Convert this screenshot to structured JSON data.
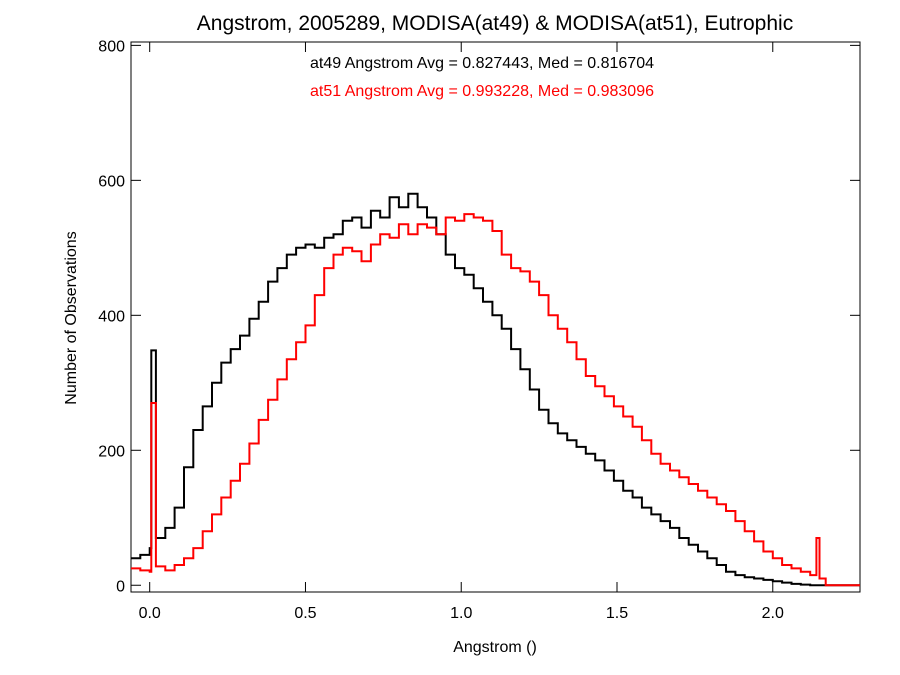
{
  "chart_data": {
    "type": "line",
    "step": true,
    "title": "Angstrom, 2005289, MODISA(at49) & MODISA(at51), Eutrophic",
    "xlabel": "Angstrom ()",
    "ylabel": "Number of Observations",
    "xlim": [
      -0.06,
      2.28
    ],
    "ylim": [
      -10,
      805
    ],
    "xticks": [
      {
        "value": 0.0,
        "label": "0.0"
      },
      {
        "value": 0.5,
        "label": "0.5"
      },
      {
        "value": 1.0,
        "label": "1.0"
      },
      {
        "value": 1.5,
        "label": "1.5"
      },
      {
        "value": 2.0,
        "label": "2.0"
      }
    ],
    "yticks": [
      {
        "value": 0,
        "label": "0"
      },
      {
        "value": 200,
        "label": "200"
      },
      {
        "value": 400,
        "label": "400"
      },
      {
        "value": 600,
        "label": "600"
      },
      {
        "value": 800,
        "label": "800"
      }
    ],
    "grid": false,
    "annotations": [
      {
        "text": "at49 Angstrom Avg = 0.827443, Med = 0.816704",
        "color": "#000000"
      },
      {
        "text": "at51 Angstrom Avg = 0.993228, Med = 0.983096",
        "color": "#ff0000"
      }
    ],
    "series": [
      {
        "color": "#000000",
        "x": [
          -0.06,
          -0.03,
          0.0,
          0.005,
          0.02,
          0.05,
          0.08,
          0.11,
          0.14,
          0.17,
          0.2,
          0.23,
          0.26,
          0.29,
          0.32,
          0.35,
          0.38,
          0.41,
          0.44,
          0.47,
          0.5,
          0.53,
          0.56,
          0.59,
          0.62,
          0.65,
          0.68,
          0.71,
          0.74,
          0.77,
          0.8,
          0.83,
          0.86,
          0.89,
          0.92,
          0.95,
          0.98,
          1.01,
          1.04,
          1.07,
          1.1,
          1.13,
          1.16,
          1.19,
          1.22,
          1.25,
          1.28,
          1.31,
          1.34,
          1.37,
          1.4,
          1.43,
          1.46,
          1.49,
          1.52,
          1.55,
          1.58,
          1.61,
          1.64,
          1.67,
          1.7,
          1.73,
          1.76,
          1.79,
          1.82,
          1.85,
          1.88,
          1.91,
          1.94,
          1.97,
          2.0,
          2.03,
          2.06,
          2.09,
          2.12,
          2.15,
          2.18,
          2.21,
          2.24,
          2.28
        ],
        "y": [
          40,
          45,
          55,
          348,
          70,
          85,
          115,
          175,
          230,
          265,
          300,
          330,
          350,
          370,
          395,
          420,
          450,
          470,
          490,
          500,
          505,
          500,
          515,
          520,
          540,
          545,
          530,
          555,
          545,
          575,
          560,
          580,
          560,
          545,
          520,
          490,
          470,
          460,
          440,
          420,
          400,
          380,
          350,
          320,
          290,
          260,
          240,
          225,
          215,
          205,
          195,
          185,
          170,
          155,
          140,
          130,
          115,
          105,
          95,
          85,
          70,
          60,
          50,
          40,
          30,
          20,
          15,
          12,
          10,
          8,
          6,
          4,
          2,
          1,
          0,
          0,
          0,
          0,
          0,
          0
        ]
      },
      {
        "color": "#ff0000",
        "x": [
          -0.06,
          -0.03,
          0.0,
          0.005,
          0.02,
          0.05,
          0.08,
          0.11,
          0.14,
          0.17,
          0.2,
          0.23,
          0.26,
          0.29,
          0.32,
          0.35,
          0.38,
          0.41,
          0.44,
          0.47,
          0.5,
          0.53,
          0.56,
          0.59,
          0.62,
          0.65,
          0.68,
          0.71,
          0.74,
          0.77,
          0.8,
          0.83,
          0.86,
          0.89,
          0.92,
          0.95,
          0.98,
          1.01,
          1.04,
          1.07,
          1.1,
          1.13,
          1.16,
          1.19,
          1.22,
          1.25,
          1.28,
          1.31,
          1.34,
          1.37,
          1.4,
          1.43,
          1.46,
          1.49,
          1.52,
          1.55,
          1.58,
          1.61,
          1.64,
          1.67,
          1.7,
          1.73,
          1.76,
          1.79,
          1.82,
          1.85,
          1.88,
          1.91,
          1.94,
          1.97,
          2.0,
          2.03,
          2.06,
          2.09,
          2.12,
          2.14,
          2.15,
          2.17,
          2.21,
          2.24,
          2.28
        ],
        "y": [
          25,
          22,
          20,
          270,
          28,
          22,
          30,
          40,
          55,
          80,
          105,
          130,
          155,
          180,
          210,
          245,
          275,
          305,
          335,
          360,
          385,
          430,
          470,
          490,
          500,
          495,
          480,
          505,
          520,
          515,
          535,
          520,
          535,
          530,
          520,
          545,
          540,
          550,
          545,
          540,
          525,
          490,
          470,
          465,
          450,
          430,
          400,
          380,
          360,
          335,
          310,
          295,
          280,
          265,
          250,
          235,
          215,
          195,
          180,
          170,
          160,
          150,
          140,
          130,
          120,
          110,
          95,
          80,
          65,
          50,
          40,
          30,
          25,
          20,
          15,
          70,
          10,
          0,
          0,
          0,
          0
        ]
      }
    ]
  }
}
